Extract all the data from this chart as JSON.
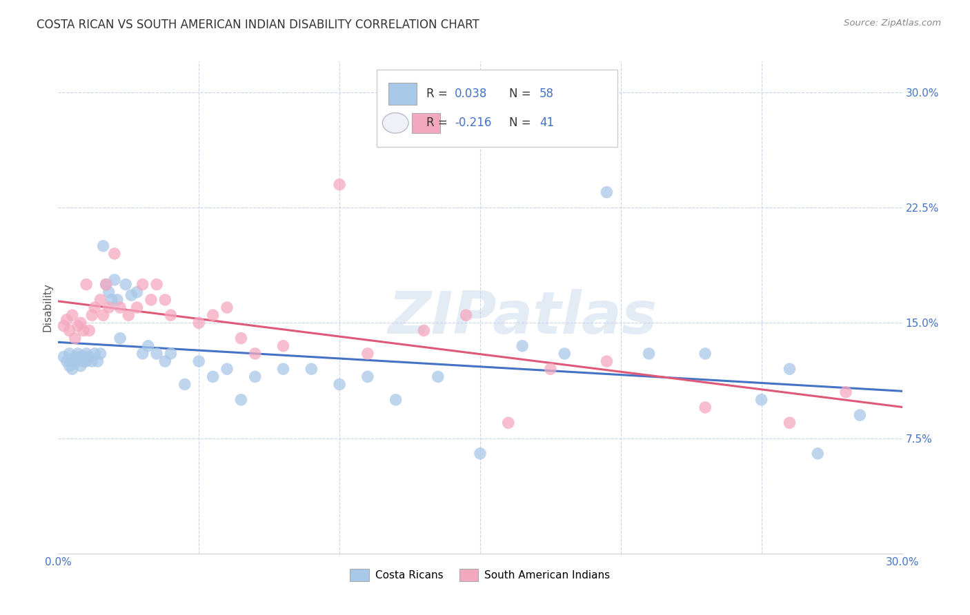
{
  "title": "COSTA RICAN VS SOUTH AMERICAN INDIAN DISABILITY CORRELATION CHART",
  "source": "Source: ZipAtlas.com",
  "ylabel": "Disability",
  "xmin": 0.0,
  "xmax": 0.3,
  "ymin": 0.0,
  "ymax": 0.32,
  "yticks": [
    0.075,
    0.15,
    0.225,
    0.3
  ],
  "ytick_labels": [
    "7.5%",
    "15.0%",
    "22.5%",
    "30.0%"
  ],
  "xticks": [
    0.0,
    0.05,
    0.1,
    0.15,
    0.2,
    0.25,
    0.3
  ],
  "xtick_labels": [
    "0.0%",
    "",
    "",
    "",
    "",
    "",
    "30.0%"
  ],
  "watermark": "ZIPatlas",
  "blue_color": "#a8c8e8",
  "pink_color": "#f4a8c0",
  "blue_line_color": "#4472c4",
  "pink_line_color": "#e05878",
  "blue_r": 0.038,
  "blue_n": 58,
  "pink_r": -0.216,
  "pink_n": 41,
  "costa_ricans_x": [
    0.002,
    0.003,
    0.004,
    0.004,
    0.005,
    0.005,
    0.006,
    0.006,
    0.007,
    0.007,
    0.008,
    0.008,
    0.009,
    0.009,
    0.01,
    0.01,
    0.011,
    0.012,
    0.013,
    0.014,
    0.015,
    0.016,
    0.017,
    0.018,
    0.019,
    0.02,
    0.021,
    0.022,
    0.024,
    0.026,
    0.028,
    0.03,
    0.032,
    0.035,
    0.038,
    0.04,
    0.045,
    0.05,
    0.055,
    0.06,
    0.065,
    0.07,
    0.08,
    0.09,
    0.1,
    0.11,
    0.12,
    0.135,
    0.15,
    0.165,
    0.18,
    0.195,
    0.21,
    0.23,
    0.25,
    0.26,
    0.27,
    0.285
  ],
  "costa_ricans_y": [
    0.128,
    0.125,
    0.13,
    0.122,
    0.126,
    0.12,
    0.128,
    0.124,
    0.13,
    0.126,
    0.128,
    0.122,
    0.125,
    0.128,
    0.125,
    0.13,
    0.128,
    0.125,
    0.13,
    0.125,
    0.13,
    0.2,
    0.175,
    0.17,
    0.165,
    0.178,
    0.165,
    0.14,
    0.175,
    0.168,
    0.17,
    0.13,
    0.135,
    0.13,
    0.125,
    0.13,
    0.11,
    0.125,
    0.115,
    0.12,
    0.1,
    0.115,
    0.12,
    0.12,
    0.11,
    0.115,
    0.1,
    0.115,
    0.065,
    0.135,
    0.13,
    0.235,
    0.13,
    0.13,
    0.1,
    0.12,
    0.065,
    0.09
  ],
  "south_american_x": [
    0.002,
    0.003,
    0.004,
    0.005,
    0.006,
    0.007,
    0.008,
    0.009,
    0.01,
    0.011,
    0.012,
    0.013,
    0.015,
    0.016,
    0.017,
    0.018,
    0.02,
    0.022,
    0.025,
    0.028,
    0.03,
    0.033,
    0.035,
    0.038,
    0.04,
    0.05,
    0.055,
    0.06,
    0.065,
    0.07,
    0.08,
    0.1,
    0.11,
    0.13,
    0.145,
    0.16,
    0.175,
    0.195,
    0.23,
    0.26,
    0.28
  ],
  "south_american_y": [
    0.148,
    0.152,
    0.145,
    0.155,
    0.14,
    0.148,
    0.15,
    0.145,
    0.175,
    0.145,
    0.155,
    0.16,
    0.165,
    0.155,
    0.175,
    0.16,
    0.195,
    0.16,
    0.155,
    0.16,
    0.175,
    0.165,
    0.175,
    0.165,
    0.155,
    0.15,
    0.155,
    0.16,
    0.14,
    0.13,
    0.135,
    0.24,
    0.13,
    0.145,
    0.155,
    0.085,
    0.12,
    0.125,
    0.095,
    0.085,
    0.105
  ]
}
